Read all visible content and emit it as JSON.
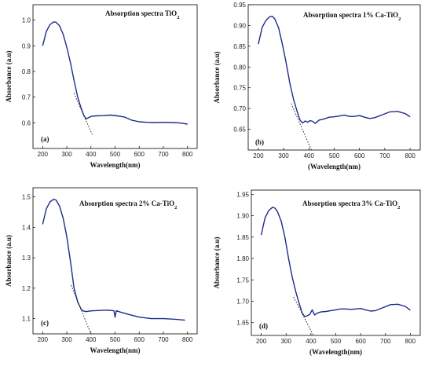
{
  "figure": {
    "colors": {
      "curve": "#1e2a8c",
      "tangent": "#222222",
      "frame": "#000000"
    }
  },
  "chart_data": [
    {
      "type": "line",
      "title": "Absorption spectra TiO",
      "title_sub": "2",
      "panel_label": "(a)",
      "xlabel": "Wavelength(nm)",
      "ylabel": "Absorbance (a.u)",
      "xlim": [
        160,
        840
      ],
      "ylim": [
        0.5,
        1.06
      ],
      "xticks": [
        "200",
        "300",
        "400",
        "500",
        "600",
        "700",
        "800"
      ],
      "yticks": [
        "0.6",
        "0.7",
        "0.8",
        "0.9",
        "1.0"
      ],
      "series": [
        {
          "x": [
            200,
            215,
            230,
            245,
            255,
            270,
            285,
            300,
            315,
            330,
            345,
            360,
            370,
            380,
            390,
            400,
            420,
            450,
            480,
            510,
            540,
            570,
            600,
            630,
            660,
            700,
            740,
            770,
            800
          ],
          "values": [
            0.9,
            0.955,
            0.982,
            0.993,
            0.992,
            0.978,
            0.945,
            0.895,
            0.835,
            0.765,
            0.7,
            0.655,
            0.63,
            0.615,
            0.62,
            0.625,
            0.627,
            0.628,
            0.63,
            0.627,
            0.622,
            0.61,
            0.604,
            0.602,
            0.601,
            0.602,
            0.601,
            0.599,
            0.595
          ]
        }
      ],
      "tangent": {
        "x": [
          330,
          405
        ],
        "values": [
          0.715,
          0.555
        ]
      }
    },
    {
      "type": "line",
      "title": "Absorption spectra 1% Ca-TiO",
      "title_sub": "2",
      "panel_label": "(b)",
      "xlabel": "(Wavelength(nm)",
      "ylabel": "Absorbance (a.u)",
      "xlim": [
        160,
        840
      ],
      "ylim": [
        0.6,
        0.95
      ],
      "xticks": [
        "200",
        "300",
        "400",
        "500",
        "600",
        "700",
        "800"
      ],
      "yticks": [
        "0.65",
        "0.70",
        "0.75",
        "0.80",
        "0.85",
        "0.90",
        "0.95"
      ],
      "series": [
        {
          "x": [
            200,
            215,
            230,
            245,
            255,
            265,
            280,
            295,
            310,
            325,
            340,
            355,
            365,
            375,
            385,
            395,
            405,
            415,
            425,
            440,
            460,
            480,
            500,
            520,
            540,
            560,
            580,
            600,
            620,
            640,
            660,
            690,
            720,
            750,
            780,
            800
          ],
          "values": [
            0.855,
            0.895,
            0.912,
            0.921,
            0.922,
            0.916,
            0.895,
            0.855,
            0.81,
            0.76,
            0.72,
            0.69,
            0.672,
            0.665,
            0.67,
            0.667,
            0.671,
            0.669,
            0.664,
            0.672,
            0.675,
            0.679,
            0.68,
            0.682,
            0.684,
            0.681,
            0.681,
            0.683,
            0.679,
            0.676,
            0.678,
            0.685,
            0.692,
            0.693,
            0.688,
            0.68
          ]
        }
      ],
      "tangent": {
        "x": [
          330,
          410
        ],
        "values": [
          0.712,
          0.6
        ]
      }
    },
    {
      "type": "line",
      "title": "Absorption spectra 2% Ca-TiO",
      "title_sub": "2",
      "panel_label": "(c)",
      "xlabel": "Wavelength(nm)",
      "ylabel": "Absorbance (a.u)",
      "xlim": [
        160,
        840
      ],
      "ylim": [
        1.05,
        1.53
      ],
      "xticks": [
        "200",
        "300",
        "400",
        "500",
        "600",
        "700",
        "800"
      ],
      "yticks": [
        "1.1",
        "1.2",
        "1.3",
        "1.4",
        "1.5"
      ],
      "series": [
        {
          "x": [
            200,
            215,
            230,
            245,
            255,
            270,
            285,
            300,
            315,
            330,
            345,
            360,
            370,
            380,
            395,
            410,
            440,
            470,
            495,
            500,
            505,
            520,
            560,
            600,
            650,
            700,
            750,
            790
          ],
          "values": [
            1.41,
            1.46,
            1.483,
            1.492,
            1.49,
            1.47,
            1.43,
            1.37,
            1.29,
            1.2,
            1.155,
            1.13,
            1.125,
            1.123,
            1.125,
            1.126,
            1.127,
            1.128,
            1.126,
            1.105,
            1.126,
            1.122,
            1.113,
            1.105,
            1.1,
            1.1,
            1.098,
            1.095
          ]
        }
      ],
      "tangent": {
        "x": [
          318,
          400
        ],
        "values": [
          1.21,
          1.045
        ]
      }
    },
    {
      "type": "line",
      "title": "Absorption spectra 3% Ca-TiO",
      "title_sub": "2",
      "panel_label": "(d)",
      "xlabel": "(Wavelength(nm)",
      "ylabel": "Absorbance (a.u)",
      "xlim": [
        160,
        840
      ],
      "ylim": [
        1.62,
        1.96
      ],
      "xticks": [
        "200",
        "300",
        "400",
        "500",
        "600",
        "700",
        "800"
      ],
      "yticks": [
        "1.65",
        "1.70",
        "1.75",
        "1.80",
        "1.85",
        "1.90",
        "1.95"
      ],
      "series": [
        {
          "x": [
            200,
            215,
            230,
            245,
            255,
            265,
            280,
            295,
            310,
            325,
            340,
            355,
            365,
            375,
            385,
            395,
            405,
            415,
            425,
            440,
            460,
            480,
            500,
            520,
            540,
            560,
            580,
            600,
            620,
            640,
            660,
            690,
            720,
            750,
            780,
            800
          ],
          "values": [
            1.855,
            1.895,
            1.912,
            1.92,
            1.918,
            1.91,
            1.888,
            1.85,
            1.8,
            1.755,
            1.72,
            1.69,
            1.672,
            1.664,
            1.666,
            1.669,
            1.68,
            1.668,
            1.672,
            1.675,
            1.676,
            1.678,
            1.68,
            1.682,
            1.682,
            1.681,
            1.682,
            1.683,
            1.68,
            1.677,
            1.678,
            1.685,
            1.692,
            1.693,
            1.688,
            1.679
          ]
        }
      ],
      "tangent": {
        "x": [
          330,
          410
        ],
        "values": [
          1.71,
          1.615
        ]
      }
    }
  ]
}
